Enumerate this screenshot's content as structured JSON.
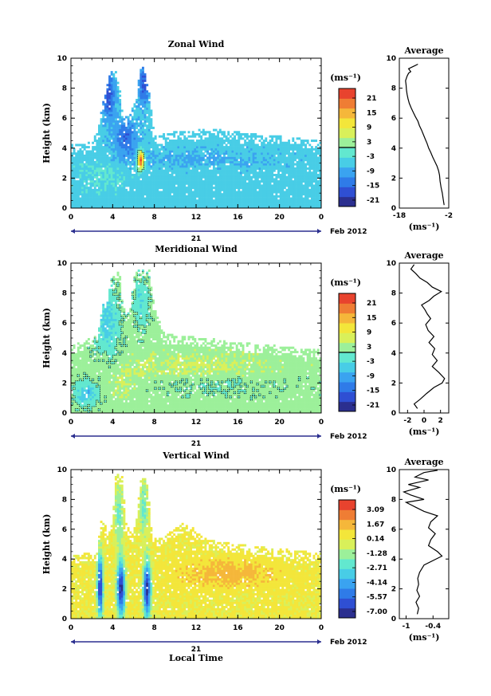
{
  "colors": {
    "colormap": [
      "#2b2f8f",
      "#2f4fd3",
      "#2f7be8",
      "#3aa3f0",
      "#48cde6",
      "#62e8cf",
      "#9cf09a",
      "#d9f05a",
      "#f3e63a",
      "#f5b73a",
      "#ef7d34",
      "#e8432e"
    ],
    "mask_white": "#ffffff",
    "contour": "#000000",
    "axis": "#000000",
    "date_bar": "#2b2f8f"
  },
  "chart_data": [
    {
      "type": "heatmap",
      "id": "zonal",
      "title": "Zonal Wind",
      "xlabel": "",
      "ylabel": "Height (km)",
      "x_ticks": [
        "0",
        "4",
        "8",
        "12",
        "16",
        "20",
        "0"
      ],
      "y_ticks": [
        "0",
        "2",
        "4",
        "6",
        "8",
        "10"
      ],
      "xlim": [
        0,
        24
      ],
      "ylim": [
        0,
        10
      ],
      "date_day": "21",
      "date_suffix": "Feb 2012",
      "colorbar": {
        "unit": "(ms⁻¹)",
        "ticks": [
          "21",
          "15",
          "9",
          "3",
          "-3",
          "-9",
          "-15",
          "-21"
        ],
        "range": [
          -24,
          24
        ]
      },
      "field": {
        "base_value": -6,
        "top_profile": [
          [
            0,
            4.3
          ],
          [
            2,
            4.4
          ],
          [
            2.6,
            5.2
          ],
          [
            3,
            6.8
          ],
          [
            3.6,
            8.6
          ],
          [
            4.1,
            9.6
          ],
          [
            4.6,
            8.5
          ],
          [
            5,
            5.9
          ],
          [
            5.5,
            6.2
          ],
          [
            6,
            6.8
          ],
          [
            6.8,
            9.6
          ],
          [
            7.4,
            8.3
          ],
          [
            8,
            4.8
          ],
          [
            10,
            5.1
          ],
          [
            14,
            5.3
          ],
          [
            18,
            4.9
          ],
          [
            22,
            4.7
          ],
          [
            24,
            4.5
          ]
        ],
        "blobs": [
          {
            "x": 5.3,
            "y": 4.7,
            "rx": 1.4,
            "ry": 1.6,
            "v": -15
          },
          {
            "x": 3.6,
            "y": 7.5,
            "rx": 0.8,
            "ry": 2.0,
            "v": -18
          },
          {
            "x": 7,
            "y": 8.3,
            "rx": 0.6,
            "ry": 1.7,
            "v": -18
          },
          {
            "x": 12,
            "y": 3.3,
            "rx": 9,
            "ry": 0.7,
            "v": -9
          },
          {
            "x": 6.7,
            "y": 3.2,
            "rx": 0.4,
            "ry": 0.8,
            "v": 23
          },
          {
            "x": 3,
            "y": 2.2,
            "rx": 2.5,
            "ry": 1.2,
            "v": -3
          },
          {
            "x": 18,
            "y": 1.3,
            "rx": 7,
            "ry": 0.8,
            "v": -6
          }
        ],
        "contour_level": 0
      },
      "profile": {
        "title": "Average",
        "xlabel": "(ms⁻¹)",
        "x_ticks": [
          -18,
          -2
        ],
        "xlim": [
          -18,
          -2
        ],
        "y_ticks": [
          "0",
          "2",
          "4",
          "6",
          "8",
          "10"
        ],
        "ylim": [
          0,
          10
        ],
        "x": [
          -3.5,
          -3.8,
          -4.1,
          -4.5,
          -4.8,
          -5.0,
          -5.3,
          -5.8,
          -6.5,
          -7.2,
          -7.8,
          -8.5,
          -9.0,
          -9.6,
          -10.2,
          -10.8,
          -11.5,
          -12.0,
          -12.8,
          -13.5,
          -14.2,
          -14.8,
          -15.2,
          -15.5,
          -15.7,
          -15.8,
          -16.0,
          -15.5,
          -15.0,
          -14.3,
          -15.0,
          -14.0,
          -13.0,
          -12.0
        ],
        "y": [
          0.2,
          0.6,
          1.0,
          1.4,
          1.8,
          2.2,
          2.5,
          2.8,
          3.1,
          3.4,
          3.7,
          4.0,
          4.3,
          4.6,
          4.9,
          5.2,
          5.5,
          5.8,
          6.1,
          6.4,
          6.7,
          7.0,
          7.3,
          7.6,
          7.9,
          8.2,
          8.5,
          8.8,
          9.0,
          9.1,
          9.3,
          9.4,
          9.5,
          9.6
        ]
      }
    },
    {
      "type": "heatmap",
      "id": "meridional",
      "title": "Meridional Wind",
      "xlabel": "",
      "ylabel": "Height (km)",
      "x_ticks": [
        "0",
        "4",
        "8",
        "12",
        "16",
        "20",
        "0"
      ],
      "y_ticks": [
        "0",
        "2",
        "4",
        "6",
        "8",
        "10"
      ],
      "xlim": [
        0,
        24
      ],
      "ylim": [
        0,
        10
      ],
      "date_day": "21",
      "date_suffix": "Feb 2012",
      "colorbar": {
        "unit": "(ms⁻¹)",
        "ticks": [
          "21",
          "15",
          "9",
          "3",
          "-3",
          "-9",
          "-15",
          "-21"
        ],
        "range": [
          -24,
          24
        ]
      },
      "field": {
        "base_value": 2,
        "top_profile": [
          [
            0,
            4.5
          ],
          [
            2.5,
            5.2
          ],
          [
            3,
            7.0
          ],
          [
            3.6,
            8.3
          ],
          [
            4.2,
            9.6
          ],
          [
            4.7,
            9.3
          ],
          [
            5,
            7.0
          ],
          [
            5.6,
            6.6
          ],
          [
            6.2,
            9.6
          ],
          [
            7.5,
            9.6
          ],
          [
            8,
            7.0
          ],
          [
            9,
            5.3
          ],
          [
            10,
            5.2
          ],
          [
            13,
            5.0
          ],
          [
            16,
            4.7
          ],
          [
            20,
            4.5
          ],
          [
            24,
            4.2
          ]
        ],
        "blobs": [
          {
            "x": 3.5,
            "y": 6.0,
            "rx": 1.5,
            "ry": 2.8,
            "v": -6
          },
          {
            "x": 6.8,
            "y": 7.5,
            "rx": 0.9,
            "ry": 2.2,
            "v": -4
          },
          {
            "x": 1.5,
            "y": 1.3,
            "rx": 1.5,
            "ry": 1.0,
            "v": -7
          },
          {
            "x": 12,
            "y": 3.2,
            "rx": 8,
            "ry": 0.9,
            "v": 5
          },
          {
            "x": 14,
            "y": 1.8,
            "rx": 9,
            "ry": 0.8,
            "v": 0
          },
          {
            "x": 5,
            "y": 2.0,
            "rx": 2,
            "ry": 1.2,
            "v": 4
          }
        ],
        "contour_level": 0
      },
      "profile": {
        "title": "Average",
        "xlabel": "(ms⁻¹)",
        "x_ticks": [
          -2,
          0,
          2
        ],
        "xlim": [
          -3,
          3
        ],
        "y_ticks": [
          "0",
          "2",
          "4",
          "6",
          "8",
          "10"
        ],
        "ylim": [
          0,
          10
        ],
        "x": [
          -0.8,
          -1.2,
          -0.5,
          0.3,
          1.2,
          2.2,
          2.5,
          1.8,
          1.0,
          1.6,
          1.0,
          1.3,
          0.6,
          1.2,
          0.5,
          0.2,
          0.8,
          0.4,
          0.1,
          -0.3,
          0.6,
          1.2,
          2.1,
          1.0,
          0.4,
          -0.5,
          -1.0,
          -1.6,
          -1.2
        ],
        "y": [
          0.3,
          0.6,
          0.9,
          1.3,
          1.7,
          2.0,
          2.3,
          2.7,
          3.1,
          3.5,
          3.9,
          4.3,
          4.7,
          5.1,
          5.5,
          5.9,
          6.3,
          6.6,
          6.9,
          7.2,
          7.5,
          7.8,
          8.1,
          8.4,
          8.7,
          9.0,
          9.3,
          9.6,
          9.9
        ]
      }
    },
    {
      "type": "heatmap",
      "id": "vertical",
      "title": "Vertical Wind",
      "xlabel": "Local Time",
      "ylabel": "Height (km)",
      "x_ticks": [
        "0",
        "4",
        "8",
        "12",
        "16",
        "20",
        "0"
      ],
      "y_ticks": [
        "0",
        "2",
        "4",
        "6",
        "8",
        "10"
      ],
      "xlim": [
        0,
        24
      ],
      "ylim": [
        0,
        10
      ],
      "date_day": "21",
      "date_suffix": "Feb 2012",
      "colorbar": {
        "unit": "(ms⁻¹)",
        "ticks": [
          "3.09",
          "1.67",
          "0.14",
          "-1.28",
          "-2.71",
          "-4.14",
          "-5.57",
          "-7.00"
        ],
        "range": [
          -8.0,
          4.0
        ]
      },
      "field": {
        "base_value": 0.2,
        "top_profile": [
          [
            0,
            4.3
          ],
          [
            2.5,
            4.5
          ],
          [
            2.8,
            6.5
          ],
          [
            3.2,
            6.6
          ],
          [
            3.5,
            5.5
          ],
          [
            4,
            6.5
          ],
          [
            4.3,
            9.8
          ],
          [
            5,
            9.5
          ],
          [
            5.2,
            6.5
          ],
          [
            6,
            5.6
          ],
          [
            6.8,
            9.8
          ],
          [
            7.3,
            9.6
          ],
          [
            7.8,
            5.3
          ],
          [
            9,
            5.6
          ],
          [
            11,
            6.5
          ],
          [
            13,
            5.3
          ],
          [
            16,
            5.0
          ],
          [
            20,
            4.7
          ],
          [
            24,
            4.4
          ]
        ],
        "blobs": [
          {
            "x": 2.8,
            "y": 2.2,
            "rx": 0.35,
            "ry": 2.6,
            "v": -7.5
          },
          {
            "x": 4.8,
            "y": 2.0,
            "rx": 0.5,
            "ry": 2.4,
            "v": -7.5
          },
          {
            "x": 7.3,
            "y": 2.0,
            "rx": 0.45,
            "ry": 2.4,
            "v": -7.5
          },
          {
            "x": 4.6,
            "y": 7.0,
            "rx": 0.5,
            "ry": 2.5,
            "v": -2.5
          },
          {
            "x": 7.0,
            "y": 7.5,
            "rx": 0.5,
            "ry": 2.4,
            "v": -2.5
          },
          {
            "x": 15,
            "y": 3.0,
            "rx": 6,
            "ry": 1.2,
            "v": 1.5
          }
        ],
        "contour_level": null
      },
      "profile": {
        "title": "Average",
        "xlabel": "(ms⁻¹)",
        "x_ticks": [
          -1.0,
          -0.4
        ],
        "xlim": [
          -1.15,
          -0.05
        ],
        "y_ticks": [
          "0",
          "2",
          "4",
          "6",
          "8",
          "10"
        ],
        "ylim": [
          0,
          10
        ],
        "x": [
          -0.75,
          -0.72,
          -0.78,
          -0.7,
          -0.76,
          -0.72,
          -0.74,
          -0.7,
          -0.6,
          -0.2,
          -0.3,
          -0.5,
          -0.45,
          -0.35,
          -0.5,
          -0.45,
          -0.3,
          -0.6,
          -0.8,
          -1.0,
          -0.6,
          -0.9,
          -1.05,
          -0.7,
          -0.95,
          -0.5,
          -0.8,
          -0.6,
          -0.3
        ],
        "y": [
          0.3,
          0.7,
          1.1,
          1.5,
          1.9,
          2.3,
          2.7,
          3.1,
          3.6,
          4.2,
          4.5,
          4.9,
          5.3,
          5.7,
          6.1,
          6.5,
          6.9,
          7.2,
          7.5,
          7.8,
          8.0,
          8.3,
          8.5,
          8.8,
          9.0,
          9.3,
          9.5,
          9.8,
          9.95
        ]
      }
    }
  ]
}
